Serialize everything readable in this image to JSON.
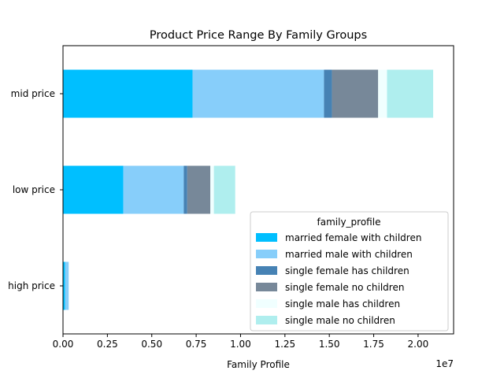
{
  "chart_data": {
    "type": "bar",
    "orientation": "horizontal",
    "stacked": true,
    "title": "Product Price Range By Family Groups",
    "xlabel": "Family Profile",
    "ylabel": "",
    "x_scale_label": "1e7",
    "xlim": [
      0,
      2.2
    ],
    "xticks": [
      "0.00",
      "0.25",
      "0.50",
      "0.75",
      "1.00",
      "1.25",
      "1.50",
      "1.75",
      "2.00"
    ],
    "categories": [
      "high price",
      "low price",
      "mid price"
    ],
    "legend": {
      "title": "family_profile",
      "position": "lower right"
    },
    "grid": false,
    "series": [
      {
        "name": "married female with children",
        "color": "#00BFFF",
        "values": [
          0.012,
          0.34,
          0.73
        ]
      },
      {
        "name": "married male with children",
        "color": "#87CEFA",
        "values": [
          0.02,
          0.34,
          0.74
        ]
      },
      {
        "name": "single female has children",
        "color": "#4682B4",
        "values": [
          0.0,
          0.02,
          0.045
        ]
      },
      {
        "name": "single female no children",
        "color": "#778899",
        "values": [
          0.0,
          0.13,
          0.26
        ]
      },
      {
        "name": "single male has children",
        "color": "#F0FFFF",
        "values": [
          0.0,
          0.02,
          0.05
        ]
      },
      {
        "name": "single male no children",
        "color": "#AFEEEE",
        "values": [
          0.0,
          0.12,
          0.26
        ]
      }
    ]
  }
}
